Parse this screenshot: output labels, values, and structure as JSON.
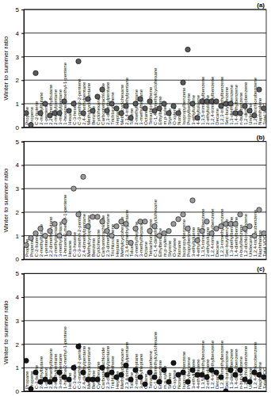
{
  "chart_data": [
    {
      "type": "scatter",
      "title": "(a)",
      "y_label": "Winter to summer ratio",
      "marker": "circle",
      "color": "#5a5a5a",
      "grid": true,
      "ylim": [
        0,
        5
      ],
      "yticks": [
        0,
        1,
        2,
        3,
        4,
        5
      ],
      "categories": [
        "Propane",
        "Propene",
        "C-2-butene",
        "2-methylbutane",
        "1-pentene",
        "2,2-dimethylbutane",
        "2-methylpentane",
        "3-methylpentane",
        "1-hexene/2-methyl-1-pentene",
        "Hexane",
        "C-3-hexene",
        "C-3-methyl-2-pentene",
        "2,4-dimethylpentane",
        "Methylcyclopentane",
        "Benzene",
        "Cyclohexane",
        "Carbontetrachloride",
        "2,3-dimethylpentane",
        "Trichloroethene",
        "Heptane",
        "Methylcyclohexane",
        "2,3,4-trimethylpentane",
        "Toluene",
        "2-methylheptane",
        "3-methylheptane",
        "Octane",
        "Tetrachloroethene",
        "C-1,4-dimethylcyclohexane",
        "Ethylbenzene",
        "m,p-xylene",
        "Styrene",
        "O-xylene",
        "Nonane",
        "Isopropylbenzene",
        "Propylbenzene",
        "3-ethyltoluene",
        "4-ethyltoluene",
        "1,3,5-trimethylbenzene",
        "2-ethyltoluene",
        "1,2,4-trimethylbenzene",
        "Decane",
        "1,2,3-trimethylbenzene",
        "Sec-butylbenzene",
        "1,3-diethylbenzene",
        "1,4-diethylbenzene",
        "n-butylbenzene",
        "1,2-dichlorobenzene",
        "Undecane",
        "1,2,4-trichlorobenzene",
        "Naphthalene",
        "Total VOC"
      ],
      "values": [
        0.6,
        0.1,
        2.3,
        0.6,
        1.0,
        0.5,
        0.6,
        0.6,
        1.1,
        0.7,
        1.0,
        2.8,
        0.6,
        1.2,
        0.7,
        1.3,
        1.6,
        0.7,
        1.0,
        0.8,
        0.6,
        0.9,
        0.4,
        1.0,
        1.2,
        0.8,
        1.1,
        0.7,
        0.8,
        1.0,
        0.6,
        0.9,
        0.6,
        1.9,
        3.3,
        1.0,
        0.4,
        1.1,
        1.1,
        1.1,
        1.1,
        0.9,
        1.0,
        1.0,
        0.6,
        0.6,
        0.9,
        0.7,
        0.5,
        1.6,
        0.8
      ]
    },
    {
      "type": "scatter",
      "title": "(b)",
      "y_label": "Winter to summer ratio",
      "marker": "circle",
      "color": "#9a9a9a",
      "grid": true,
      "ylim": [
        0,
        5
      ],
      "yticks": [
        0,
        1,
        2,
        3,
        4,
        5
      ],
      "categories": [
        "Propane",
        "Propene",
        "C-2-butene",
        "2-methylbutane",
        "1-pentene",
        "2,2-dimethylbutane",
        "2-methylpentane",
        "3-methylpentane",
        "1-hexene/2-methyl-1-pentene",
        "Hexane",
        "C-3-hexene",
        "C-3-methyl-2-pentene",
        "2,4-dimethylpentane",
        "Methylcyclopentane",
        "Benzene",
        "Cyclohexane",
        "Carbontetrachloride",
        "2,3-dimethylpentane",
        "Trichloroethene",
        "Heptane",
        "Methylcyclohexane",
        "2,3,4-trimethylpentane",
        "Toluene",
        "2-methylheptane",
        "3-methylheptane",
        "Octane",
        "Tetrachloroethene",
        "C-1,4-dimethylcyclohexane",
        "Ethylbenzene",
        "m,p-xylene",
        "Styrene",
        "O-xylene",
        "Nonane",
        "Isopropylbenzene",
        "Propylbenzene",
        "3-ethyltoluene",
        "4-ethyltoluene",
        "1,3,5-trimethylbenzene",
        "2-ethyltoluene",
        "1,2,4-trimethylbenzene",
        "Decane",
        "1,2,3-trimethylbenzene",
        "Sec-butylbenzene",
        "1,3-diethylbenzene",
        "1,4-diethylbenzene",
        "n-butylbenzene",
        "1,2-dichlorobenzene",
        "Undecane",
        "1,2,4-trichlorobenzene",
        "Naphthalene",
        "Total VOC"
      ],
      "values": [
        0.6,
        0.9,
        1.1,
        1.3,
        1.0,
        1.2,
        1.5,
        1.0,
        1.6,
        1.1,
        3.0,
        1.9,
        3.5,
        1.4,
        1.8,
        1.8,
        1.6,
        1.2,
        1.0,
        1.4,
        1.6,
        1.5,
        0.7,
        1.3,
        1.6,
        1.6,
        1.2,
        1.4,
        1.0,
        1.1,
        1.2,
        1.5,
        1.7,
        1.9,
        1.3,
        2.5,
        0.8,
        1.2,
        1.6,
        1.1,
        1.3,
        1.4,
        1.5,
        1.5,
        1.5,
        1.9,
        1.3,
        1.4,
        1.0,
        2.1,
        1.1
      ]
    },
    {
      "type": "scatter",
      "title": "(c)",
      "y_label": "Winter to summer ratio",
      "marker": "circle",
      "color": "#151515",
      "grid": true,
      "ylim": [
        0,
        5
      ],
      "yticks": [
        0,
        1,
        2,
        3,
        4,
        5
      ],
      "categories": [
        "Propane",
        "Propene",
        "C-2-butene",
        "2-methylbutane",
        "1-pentene",
        "2,2-dimethylbutane",
        "2-methylpentane",
        "3-methylpentane",
        "1-hexene/2-methyl-1-pentene",
        "Hexane",
        "C-3-hexene",
        "C-3-methyl-2-pentene",
        "2,4-dimethylpentane",
        "Methylcyclopentane",
        "Benzene",
        "Cyclohexane",
        "Carbontetrachloride",
        "2,3-dimethylpentane",
        "Trichloroethene",
        "Heptane",
        "Methylcyclohexane",
        "2,3,4-trimethylpentane",
        "Toluene",
        "2-methylheptane",
        "3-methylheptane",
        "Octane",
        "Tetrachloroethene",
        "C-1,4-dimethylcyclohexane",
        "Ethylbenzene",
        "m,p-xylene",
        "Styrene",
        "O-xylene",
        "Nonane",
        "Isopropylbenzene",
        "Propylbenzene",
        "3-ethyltoluene",
        "4-ethyltoluene",
        "1,3,5-trimethylbenzene",
        "2-ethyltoluene",
        "1,2,4-trimethylbenzene",
        "Decane",
        "1,2,3-trimethylbenzene",
        "Sec-butylbenzene",
        "1,3-diethylbenzene",
        "1,4-diethylbenzene",
        "n-butylbenzene",
        "1,2-dichlorobenzene",
        "Undecane",
        "1,2,4-trichlorobenzene",
        "Naphthalene",
        "Total VOC"
      ],
      "values": [
        1.3,
        0.1,
        0.8,
        0.4,
        0.5,
        0.4,
        0.5,
        0.8,
        0.6,
        0.5,
        1.0,
        1.9,
        0.8,
        0.5,
        0.5,
        0.5,
        1.0,
        0.7,
        0.8,
        0.6,
        0.7,
        1.1,
        0.5,
        0.9,
        0.6,
        0.3,
        0.8,
        0.6,
        0.4,
        0.9,
        0.4,
        1.2,
        0.7,
        0.8,
        0.4,
        0.9,
        0.7,
        0.7,
        0.6,
        0.9,
        0.8,
        0.6,
        0.0,
        0.9,
        0.7,
        0.9,
        0.5,
        0.4,
        0.8,
        0.7,
        0.6
      ]
    }
  ]
}
